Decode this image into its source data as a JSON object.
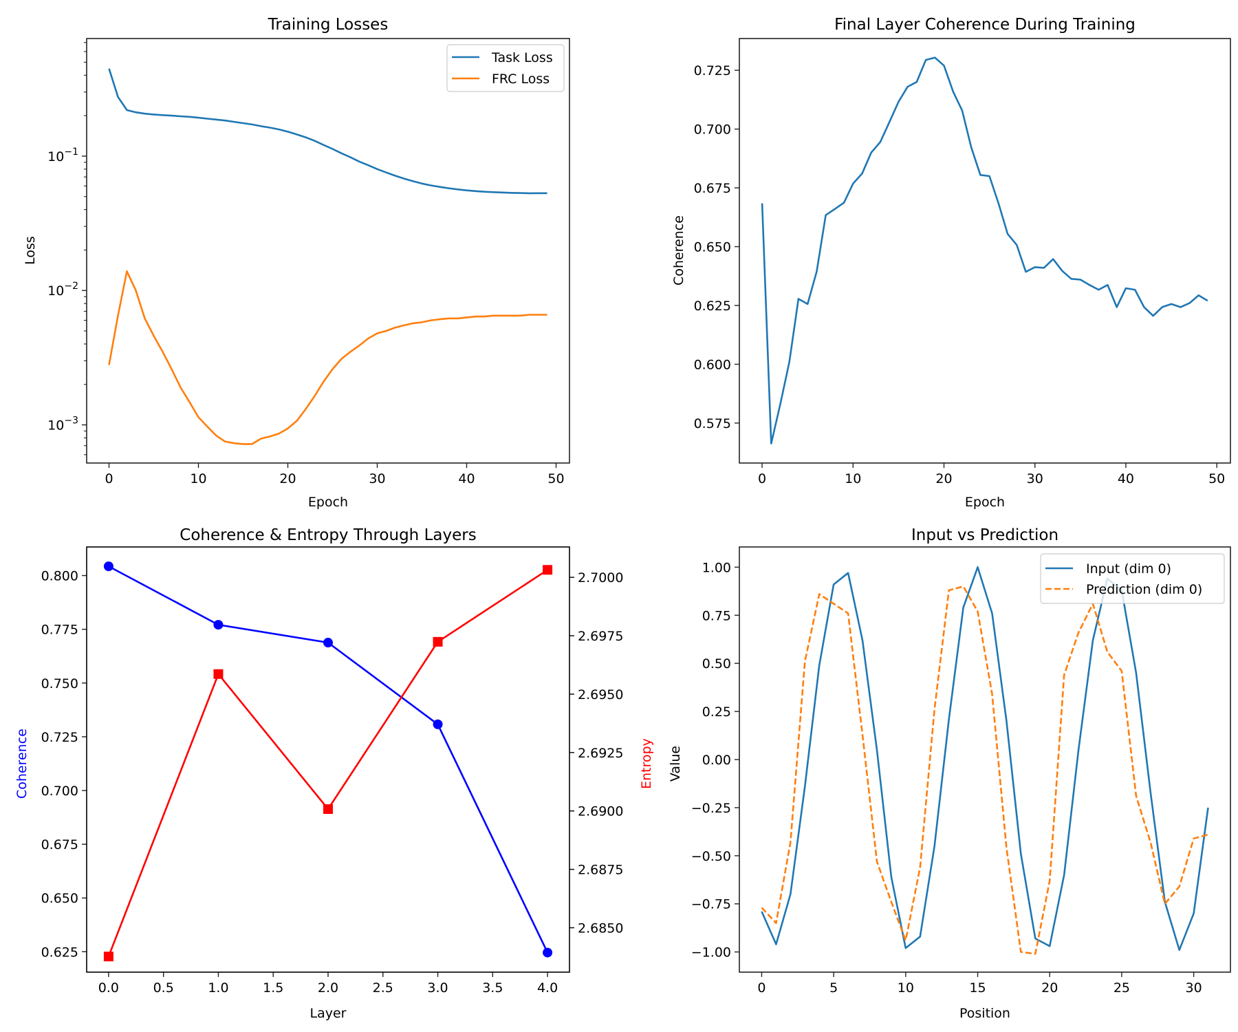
{
  "chart_data": [
    {
      "id": "training-losses",
      "type": "line",
      "title": "Training Losses",
      "xlabel": "Epoch",
      "ylabel": "Loss",
      "yscale": "log",
      "xlim": [
        -2.5,
        51.5
      ],
      "ylim": [
        0.00052,
        0.75
      ],
      "xticks": [
        0,
        10,
        20,
        30,
        40,
        50
      ],
      "xtick_labels": [
        "0",
        "10",
        "20",
        "30",
        "40",
        "50"
      ],
      "yticks": [
        0.001,
        0.01,
        0.1
      ],
      "ytick_labels": [
        {
          "base": "10",
          "exp": "−3"
        },
        {
          "base": "10",
          "exp": "−2"
        },
        {
          "base": "10",
          "exp": "−1"
        }
      ],
      "grid": false,
      "legend": {
        "position": "top-right",
        "entries": [
          "Task Loss",
          "FRC Loss"
        ]
      },
      "x": [
        0,
        1,
        2,
        3,
        4,
        5,
        6,
        7,
        8,
        9,
        10,
        11,
        12,
        13,
        14,
        15,
        16,
        17,
        18,
        19,
        20,
        21,
        22,
        23,
        24,
        25,
        26,
        27,
        28,
        29,
        30,
        31,
        32,
        33,
        34,
        35,
        36,
        37,
        38,
        39,
        40,
        41,
        42,
        43,
        44,
        45,
        46,
        47,
        48,
        49
      ],
      "series": [
        {
          "name": "Task Loss",
          "color": "#1f77b4",
          "style": "solid",
          "values": [
            0.448,
            0.276,
            0.22,
            0.212,
            0.207,
            0.204,
            0.202,
            0.2,
            0.198,
            0.196,
            0.193,
            0.19,
            0.187,
            0.184,
            0.18,
            0.176,
            0.172,
            0.167,
            0.163,
            0.158,
            0.152,
            0.145,
            0.138,
            0.13,
            0.121,
            0.113,
            0.105,
            0.098,
            0.091,
            0.0855,
            0.08,
            0.0755,
            0.0715,
            0.068,
            0.065,
            0.0625,
            0.0605,
            0.059,
            0.0577,
            0.0565,
            0.0556,
            0.0549,
            0.0543,
            0.0539,
            0.0536,
            0.0533,
            0.0531,
            0.0529,
            0.053,
            0.053
          ]
        },
        {
          "name": "FRC Loss",
          "color": "#ff7f0e",
          "style": "solid",
          "values": [
            0.00279,
            0.0065,
            0.0139,
            0.01,
            0.0062,
            0.0046,
            0.0035,
            0.0026,
            0.0019,
            0.00148,
            0.00114,
            0.00097,
            0.00083,
            0.00075,
            0.00073,
            0.00072,
            0.00072,
            0.00079,
            0.00082,
            0.00086,
            0.00094,
            0.00107,
            0.00131,
            0.00164,
            0.0021,
            0.0026,
            0.0031,
            0.0035,
            0.0039,
            0.0044,
            0.0048,
            0.005,
            0.0053,
            0.0055,
            0.0057,
            0.0058,
            0.006,
            0.0061,
            0.0062,
            0.0062,
            0.0063,
            0.0064,
            0.0064,
            0.0065,
            0.0065,
            0.0065,
            0.0065,
            0.0066,
            0.0066,
            0.0066
          ]
        }
      ]
    },
    {
      "id": "final-layer-coherence",
      "type": "line",
      "title": "Final Layer Coherence During Training",
      "xlabel": "Epoch",
      "ylabel": "Coherence",
      "xlim": [
        -2.5,
        51.5
      ],
      "ylim": [
        0.558,
        0.7385
      ],
      "xticks": [
        0,
        10,
        20,
        30,
        40,
        50
      ],
      "xtick_labels": [
        "0",
        "10",
        "20",
        "30",
        "40",
        "50"
      ],
      "yticks": [
        0.575,
        0.6,
        0.625,
        0.65,
        0.675,
        0.7,
        0.725
      ],
      "ytick_labels": [
        "0.575",
        "0.600",
        "0.625",
        "0.650",
        "0.675",
        "0.700",
        "0.725"
      ],
      "grid": false,
      "x": [
        0,
        1,
        2,
        3,
        4,
        5,
        6,
        7,
        8,
        9,
        10,
        11,
        12,
        13,
        14,
        15,
        16,
        17,
        18,
        19,
        20,
        21,
        22,
        23,
        24,
        25,
        26,
        27,
        28,
        29,
        30,
        31,
        32,
        33,
        34,
        35,
        36,
        37,
        38,
        39,
        40,
        41,
        42,
        43,
        44,
        45,
        46,
        47,
        48,
        49
      ],
      "series": [
        {
          "name": "Coherence",
          "color": "#1f77b4",
          "style": "solid",
          "values": [
            0.6684,
            0.5663,
            0.583,
            0.601,
            0.6278,
            0.6256,
            0.6394,
            0.6634,
            0.666,
            0.6687,
            0.6768,
            0.6811,
            0.69,
            0.6945,
            0.703,
            0.7116,
            0.718,
            0.72,
            0.7294,
            0.7304,
            0.727,
            0.716,
            0.7079,
            0.6922,
            0.6805,
            0.68,
            0.6684,
            0.6554,
            0.6507,
            0.6393,
            0.6413,
            0.641,
            0.6447,
            0.6397,
            0.6363,
            0.636,
            0.6337,
            0.6317,
            0.6337,
            0.6243,
            0.6323,
            0.6317,
            0.6243,
            0.6206,
            0.6243,
            0.6256,
            0.6243,
            0.626,
            0.6293,
            0.627
          ]
        }
      ]
    },
    {
      "id": "coherence-entropy-layers",
      "type": "line",
      "title": "Coherence & Entropy Through Layers",
      "xlabel": "Layer",
      "ylabel": "Coherence",
      "ylabel_color": "#0000ff",
      "y2label": "Entropy",
      "y2label_color": "#ff0000",
      "xlim": [
        -0.2,
        4.2
      ],
      "ylim": [
        0.6155,
        0.8133
      ],
      "y2lim": [
        2.6831,
        2.7013
      ],
      "xticks": [
        0,
        0.5,
        1,
        1.5,
        2,
        2.5,
        3,
        3.5,
        4
      ],
      "xtick_labels": [
        "0.0",
        "0.5",
        "1.0",
        "1.5",
        "2.0",
        "2.5",
        "3.0",
        "3.5",
        "4.0"
      ],
      "yticks": [
        0.625,
        0.65,
        0.675,
        0.7,
        0.725,
        0.75,
        0.775,
        0.8
      ],
      "ytick_labels": [
        "0.625",
        "0.650",
        "0.675",
        "0.700",
        "0.725",
        "0.750",
        "0.775",
        "0.800"
      ],
      "y2ticks": [
        2.685,
        2.6875,
        2.69,
        2.6925,
        2.695,
        2.6975,
        2.7
      ],
      "y2tick_labels": [
        "2.6850",
        "2.6875",
        "2.6900",
        "2.6925",
        "2.6950",
        "2.6975",
        "2.7000"
      ],
      "grid": false,
      "x": [
        0,
        1,
        2,
        3,
        4
      ],
      "series": [
        {
          "name": "Coherence",
          "axis": "left",
          "color": "#0000ff",
          "marker": "circle",
          "values": [
            0.8043,
            0.7771,
            0.7688,
            0.7308,
            0.6246
          ]
        },
        {
          "name": "Entropy",
          "axis": "right",
          "color": "#ff0000",
          "marker": "square",
          "values": [
            2.68377,
            2.69586,
            2.69008,
            2.69724,
            2.70032
          ]
        }
      ]
    },
    {
      "id": "input-vs-prediction",
      "type": "line",
      "title": "Input vs Prediction",
      "xlabel": "Position",
      "ylabel": "Value",
      "xlim": [
        -1.55,
        32.55
      ],
      "ylim": [
        -1.105,
        1.105
      ],
      "xticks": [
        0,
        5,
        10,
        15,
        20,
        25,
        30
      ],
      "xtick_labels": [
        "0",
        "5",
        "10",
        "15",
        "20",
        "25",
        "30"
      ],
      "yticks": [
        -1,
        -0.75,
        -0.5,
        -0.25,
        0,
        0.25,
        0.5,
        0.75,
        1
      ],
      "ytick_labels": [
        "−1.00",
        "−0.75",
        "−0.50",
        "−0.25",
        "0.00",
        "0.25",
        "0.50",
        "0.75",
        "1.00"
      ],
      "grid": false,
      "legend": {
        "position": "top-right",
        "entries": [
          "Input (dim 0)",
          "Prediction (dim 0)"
        ]
      },
      "x": [
        0,
        1,
        2,
        3,
        4,
        5,
        6,
        7,
        8,
        9,
        10,
        11,
        12,
        13,
        14,
        15,
        16,
        17,
        18,
        19,
        20,
        21,
        22,
        23,
        24,
        25,
        26,
        27,
        28,
        29,
        30,
        31
      ],
      "series": [
        {
          "name": "Input (dim 0)",
          "color": "#1f77b4",
          "style": "solid",
          "values": [
            -0.79,
            -0.96,
            -0.7,
            -0.14,
            0.49,
            0.91,
            0.97,
            0.62,
            0.05,
            -0.61,
            -0.98,
            -0.92,
            -0.45,
            0.21,
            0.79,
            1.0,
            0.76,
            0.2,
            -0.49,
            -0.93,
            -0.97,
            -0.6,
            0.05,
            0.62,
            0.94,
            0.88,
            0.45,
            -0.17,
            -0.74,
            -0.99,
            -0.8,
            -0.25
          ]
        },
        {
          "name": "Prediction (dim 0)",
          "color": "#ff7f0e",
          "style": "dashed",
          "values": [
            -0.77,
            -0.85,
            -0.43,
            0.51,
            0.86,
            0.81,
            0.76,
            0.13,
            -0.53,
            -0.74,
            -0.94,
            -0.56,
            0.26,
            0.88,
            0.9,
            0.77,
            0.34,
            -0.46,
            -1.0,
            -1.01,
            -0.63,
            0.44,
            0.66,
            0.81,
            0.56,
            0.46,
            -0.19,
            -0.43,
            -0.75,
            -0.66,
            -0.41,
            -0.39
          ]
        }
      ]
    }
  ]
}
